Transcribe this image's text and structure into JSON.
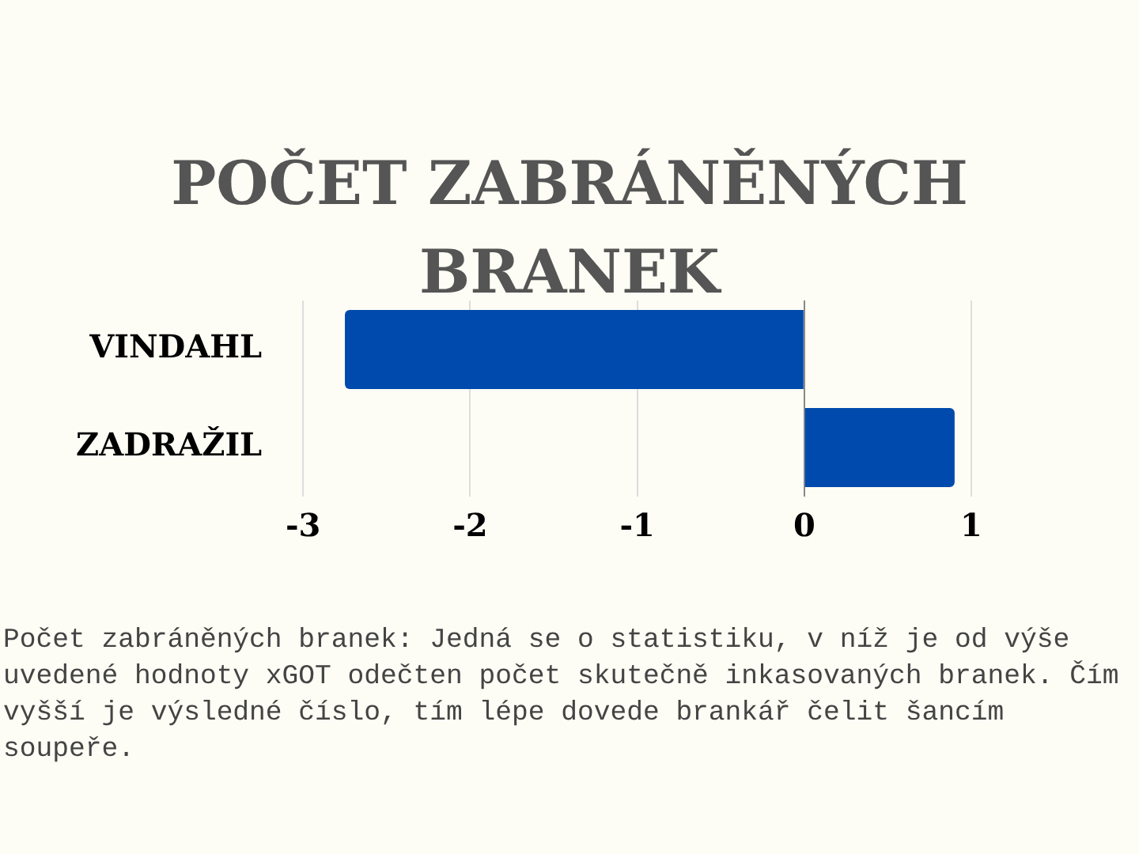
{
  "chart_data": {
    "type": "bar",
    "orientation": "horizontal",
    "title": "POČET ZABRÁNĚNÝCH BRANEK",
    "categories": [
      "VINDAHL",
      "ZADRAŽIL"
    ],
    "values": [
      -2.75,
      0.9
    ],
    "color": "#004aad",
    "xlim": [
      -3,
      1
    ],
    "xticks": [
      -3,
      -2,
      -1,
      0,
      1
    ],
    "grid": "x",
    "annotations": [
      "Počet zabráněných branek: Jedná se o statistiku, v níž je od výše uvedené hodnoty xGOT odečten počet skutečně inkasovaných branek. Čím vyšší je výsledné číslo, tím lépe dovede brankář čelit šancím soupeře."
    ]
  }
}
